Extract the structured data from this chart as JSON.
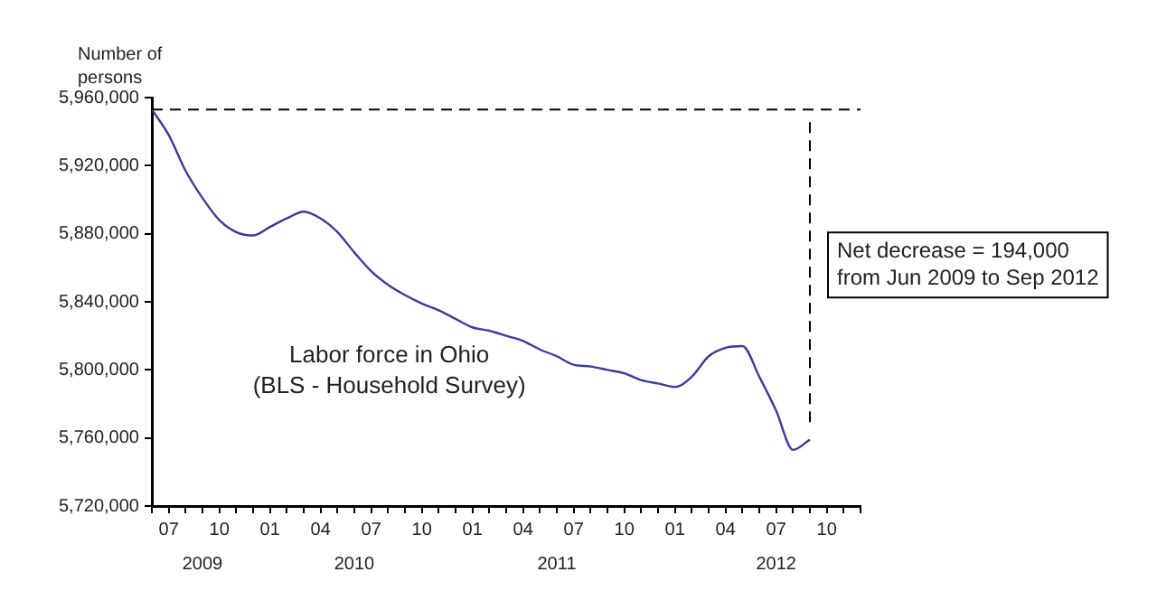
{
  "chart_data": {
    "type": "line",
    "ylabel": "Number of persons",
    "x": [
      "2009-06",
      "2009-07",
      "2009-08",
      "2009-09",
      "2009-10",
      "2009-11",
      "2009-12",
      "2010-01",
      "2010-02",
      "2010-03",
      "2010-04",
      "2010-05",
      "2010-06",
      "2010-07",
      "2010-08",
      "2010-09",
      "2010-10",
      "2010-11",
      "2010-12",
      "2011-01",
      "2011-02",
      "2011-03",
      "2011-04",
      "2011-05",
      "2011-06",
      "2011-07",
      "2011-08",
      "2011-09",
      "2011-10",
      "2011-11",
      "2011-12",
      "2012-01",
      "2012-02",
      "2012-03",
      "2012-04",
      "2012-05",
      "2012-06",
      "2012-07",
      "2012-08",
      "2012-09"
    ],
    "series": [
      {
        "color": "#3b3b9a",
        "values": [
          5953000,
          5938000,
          5917000,
          5901000,
          5888000,
          5881000,
          5879000,
          5884000,
          5889000,
          5893000,
          5889000,
          5881000,
          5869000,
          5858000,
          5850000,
          5844000,
          5839000,
          5835000,
          5830000,
          5825000,
          5823000,
          5820000,
          5817000,
          5812000,
          5808000,
          5803000,
          5802000,
          5800000,
          5798000,
          5794000,
          5792000,
          5790000,
          5796000,
          5808000,
          5813000,
          5814000,
          5796000,
          5776000,
          5753000,
          5759000
        ]
      }
    ],
    "xlim": [
      "2009-06",
      "2012-12"
    ],
    "xticks": [
      {
        "value": "2009-06",
        "label": null
      },
      {
        "value": "2009-07",
        "label": "07"
      },
      {
        "value": "2009-08",
        "label": null
      },
      {
        "value": "2009-09",
        "label": null
      },
      {
        "value": "2009-10",
        "label": "10"
      },
      {
        "value": "2009-11",
        "label": null
      },
      {
        "value": "2009-12",
        "label": null
      },
      {
        "value": "2010-01",
        "label": "01"
      },
      {
        "value": "2010-02",
        "label": null
      },
      {
        "value": "2010-03",
        "label": null
      },
      {
        "value": "2010-04",
        "label": "04"
      },
      {
        "value": "2010-05",
        "label": null
      },
      {
        "value": "2010-06",
        "label": null
      },
      {
        "value": "2010-07",
        "label": "07"
      },
      {
        "value": "2010-08",
        "label": null
      },
      {
        "value": "2010-09",
        "label": null
      },
      {
        "value": "2010-10",
        "label": "10"
      },
      {
        "value": "2010-11",
        "label": null
      },
      {
        "value": "2010-12",
        "label": null
      },
      {
        "value": "2011-01",
        "label": "01"
      },
      {
        "value": "2011-02",
        "label": null
      },
      {
        "value": "2011-03",
        "label": null
      },
      {
        "value": "2011-04",
        "label": "04"
      },
      {
        "value": "2011-05",
        "label": null
      },
      {
        "value": "2011-06",
        "label": null
      },
      {
        "value": "2011-07",
        "label": "07"
      },
      {
        "value": "2011-08",
        "label": null
      },
      {
        "value": "2011-09",
        "label": null
      },
      {
        "value": "2011-10",
        "label": "10"
      },
      {
        "value": "2011-11",
        "label": null
      },
      {
        "value": "2011-12",
        "label": null
      },
      {
        "value": "2012-01",
        "label": "01"
      },
      {
        "value": "2012-02",
        "label": null
      },
      {
        "value": "2012-03",
        "label": null
      },
      {
        "value": "2012-04",
        "label": "04"
      },
      {
        "value": "2012-05",
        "label": null
      },
      {
        "value": "2012-06",
        "label": null
      },
      {
        "value": "2012-07",
        "label": "07"
      },
      {
        "value": "2012-08",
        "label": null
      },
      {
        "value": "2012-09",
        "label": null
      },
      {
        "value": "2012-10",
        "label": "10"
      },
      {
        "value": "2012-11",
        "label": null
      },
      {
        "value": "2012-12",
        "label": null
      }
    ],
    "ylim": [
      5720000,
      5960000
    ],
    "yticks": [
      {
        "value": 5720000,
        "label": "5,720,000"
      },
      {
        "value": 5760000,
        "label": "5,760,000"
      },
      {
        "value": 5800000,
        "label": "5,800,000"
      },
      {
        "value": 5840000,
        "label": "5,840,000"
      },
      {
        "value": 5880000,
        "label": "5,880,000"
      },
      {
        "value": 5920000,
        "label": "5,920,000"
      },
      {
        "value": 5960000,
        "label": "5,960,000"
      }
    ],
    "x2lim": [
      "2009-06",
      "2012-12"
    ],
    "x2ticks": [
      {
        "value": "2009-09",
        "label": "2009"
      },
      {
        "value": "2010-06",
        "label": "2010"
      },
      {
        "value": "2011-06",
        "label": "2011"
      },
      {
        "value": "2012-07",
        "label": "2012"
      }
    ],
    "ref_lines": [
      {
        "axis": "y",
        "value": 5953000,
        "color": "#000000",
        "line_style": "dashed"
      },
      {
        "axis": "x",
        "value": "2012-09",
        "color": "#000000",
        "line_style": "dashed"
      }
    ],
    "annotations": [
      "Labor force in Ohio\n(BLS - Household Survey)",
      "Net decrease = 194,000\nfrom Jun 2009 to Sep 2012"
    ],
    "legend": false
  }
}
